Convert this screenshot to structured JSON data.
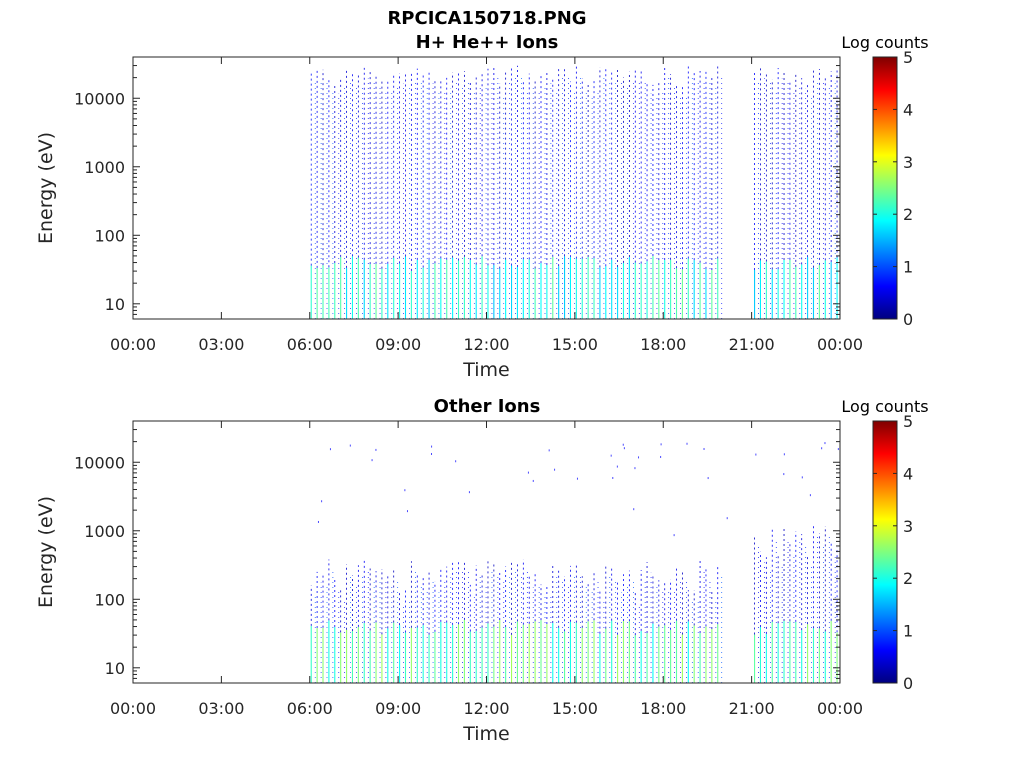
{
  "figure_title": "RPCICA150718.PNG",
  "colors": {
    "colormap": [
      "#00007f",
      "#0000ff",
      "#007fff",
      "#00ffff",
      "#7fff7f",
      "#ffff00",
      "#ff7f00",
      "#ff0000",
      "#7f0000"
    ],
    "axis": "#262626"
  },
  "chart_data": [
    {
      "type": "heatmap",
      "title": "H+ He++ Ions",
      "xlabel": "Time",
      "ylabel": "Energy (eV)",
      "x_ticks": [
        "00:00",
        "03:00",
        "06:00",
        "09:00",
        "12:00",
        "15:00",
        "18:00",
        "21:00",
        "00:00"
      ],
      "x_range_hours": [
        0,
        24
      ],
      "y_scale": "log",
      "y_ticks": [
        10,
        100,
        1000,
        10000
      ],
      "y_tick_labels": [
        "10",
        "100",
        "1000",
        "10000"
      ],
      "y_range": [
        6,
        40000
      ],
      "colorbar": {
        "label": "Log counts",
        "range": [
          0,
          5
        ],
        "ticks": [
          "0",
          "1",
          "2",
          "3",
          "4",
          "5"
        ]
      },
      "data_segments_hours": [
        [
          6.05,
          19.9
        ],
        [
          21.1,
          24.0
        ]
      ],
      "max_energy_eV": 30000,
      "low_energy_counts_log": 2.0,
      "high_energy_counts_log": 0.3
    },
    {
      "type": "heatmap",
      "title": "Other Ions",
      "xlabel": "Time",
      "ylabel": "Energy (eV)",
      "x_ticks": [
        "00:00",
        "03:00",
        "06:00",
        "09:00",
        "12:00",
        "15:00",
        "18:00",
        "21:00",
        "00:00"
      ],
      "x_range_hours": [
        0,
        24
      ],
      "y_scale": "log",
      "y_ticks": [
        10,
        100,
        1000,
        10000
      ],
      "y_tick_labels": [
        "10",
        "100",
        "1000",
        "10000"
      ],
      "y_range": [
        6,
        40000
      ],
      "colorbar": {
        "label": "Log counts",
        "range": [
          0,
          5
        ],
        "ticks": [
          "0",
          "1",
          "2",
          "3",
          "4",
          "5"
        ]
      },
      "data_segments_hours": [
        [
          6.05,
          19.9
        ],
        [
          21.1,
          24.0
        ]
      ],
      "max_energy_eV_day": 300,
      "max_energy_eV_late": 1000,
      "low_energy_counts_log": 2.3,
      "high_energy_counts_log": 0.3
    }
  ]
}
